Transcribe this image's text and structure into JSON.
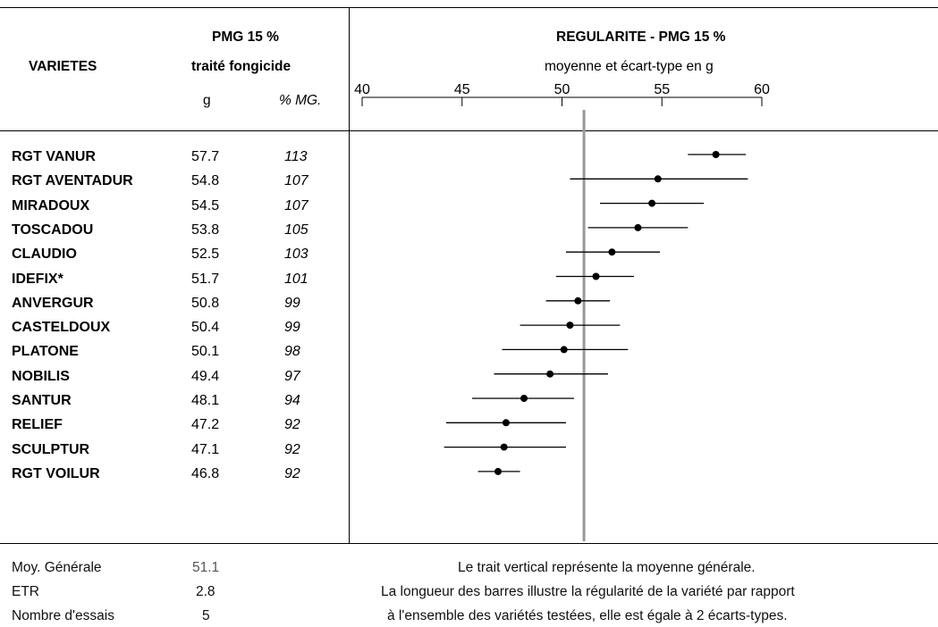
{
  "header": {
    "varietes": "VARIETES",
    "pmg_title": "PMG 15 %",
    "pmg_sub": "traité fongicide",
    "col_g": "g",
    "col_pct": "% MG.",
    "chart_title": "REGULARITE - PMG 15 %",
    "chart_sub": "moyenne et écart-type en g"
  },
  "rows": [
    {
      "name": "RGT VANUR",
      "g": "57.7",
      "pct": "113"
    },
    {
      "name": "RGT AVENTADUR",
      "g": "54.8",
      "pct": "107"
    },
    {
      "name": "MIRADOUX",
      "g": "54.5",
      "pct": "107"
    },
    {
      "name": "TOSCADOU",
      "g": "53.8",
      "pct": "105"
    },
    {
      "name": "CLAUDIO",
      "g": "52.5",
      "pct": "103"
    },
    {
      "name": "IDEFIX*",
      "g": "51.7",
      "pct": "101"
    },
    {
      "name": "ANVERGUR",
      "g": "50.8",
      "pct": "99"
    },
    {
      "name": "CASTELDOUX",
      "g": "50.4",
      "pct": "99"
    },
    {
      "name": "PLATONE",
      "g": "50.1",
      "pct": "98"
    },
    {
      "name": "NOBILIS",
      "g": "49.4",
      "pct": "97"
    },
    {
      "name": "SANTUR",
      "g": "48.1",
      "pct": "94"
    },
    {
      "name": "RELIEF",
      "g": "47.2",
      "pct": "92"
    },
    {
      "name": "SCULPTUR",
      "g": "47.1",
      "pct": "92"
    },
    {
      "name": "RGT VOILUR",
      "g": "46.8",
      "pct": "92"
    }
  ],
  "footer": {
    "moy_label": "Moy. Générale",
    "moy_value": "51.1",
    "etr_label": "ETR",
    "etr_value": "2.8",
    "essais_label": "Nombre d'essais",
    "essais_value": "5",
    "note1": "Le trait vertical représente la moyenne générale.",
    "note2": "La longueur des barres illustre la régularité de la variété par rapport",
    "note3": "à l'ensemble des variétés testées, elle est égale à 2 écarts-types."
  },
  "chart_data": {
    "type": "scatter",
    "title": "REGULARITE - PMG 15 %",
    "subtitle": "moyenne et écart-type en g",
    "xlim": [
      40,
      60
    ],
    "xticks": [
      "40",
      "45",
      "50",
      "55",
      "60"
    ],
    "mean_line": 51.1,
    "categories": [
      "RGT VANUR",
      "RGT AVENTADUR",
      "MIRADOUX",
      "TOSCADOU",
      "CLAUDIO",
      "IDEFIX*",
      "ANVERGUR",
      "CASTELDOUX",
      "PLATONE",
      "NOBILIS",
      "SANTUR",
      "RELIEF",
      "SCULPTUR",
      "RGT VOILUR"
    ],
    "means": [
      57.7,
      54.8,
      54.5,
      53.8,
      52.5,
      51.7,
      50.8,
      50.4,
      50.1,
      49.4,
      48.1,
      47.2,
      47.1,
      46.8
    ],
    "low": [
      56.3,
      50.4,
      51.9,
      51.3,
      50.2,
      49.7,
      49.2,
      47.9,
      47.0,
      46.6,
      45.5,
      44.2,
      44.1,
      45.8
    ],
    "high": [
      59.2,
      59.3,
      57.1,
      56.3,
      54.9,
      53.6,
      52.4,
      52.9,
      53.3,
      52.3,
      50.6,
      50.2,
      50.2,
      47.9
    ],
    "colors": {
      "mean_line": "#999999",
      "points": "#000000"
    }
  }
}
